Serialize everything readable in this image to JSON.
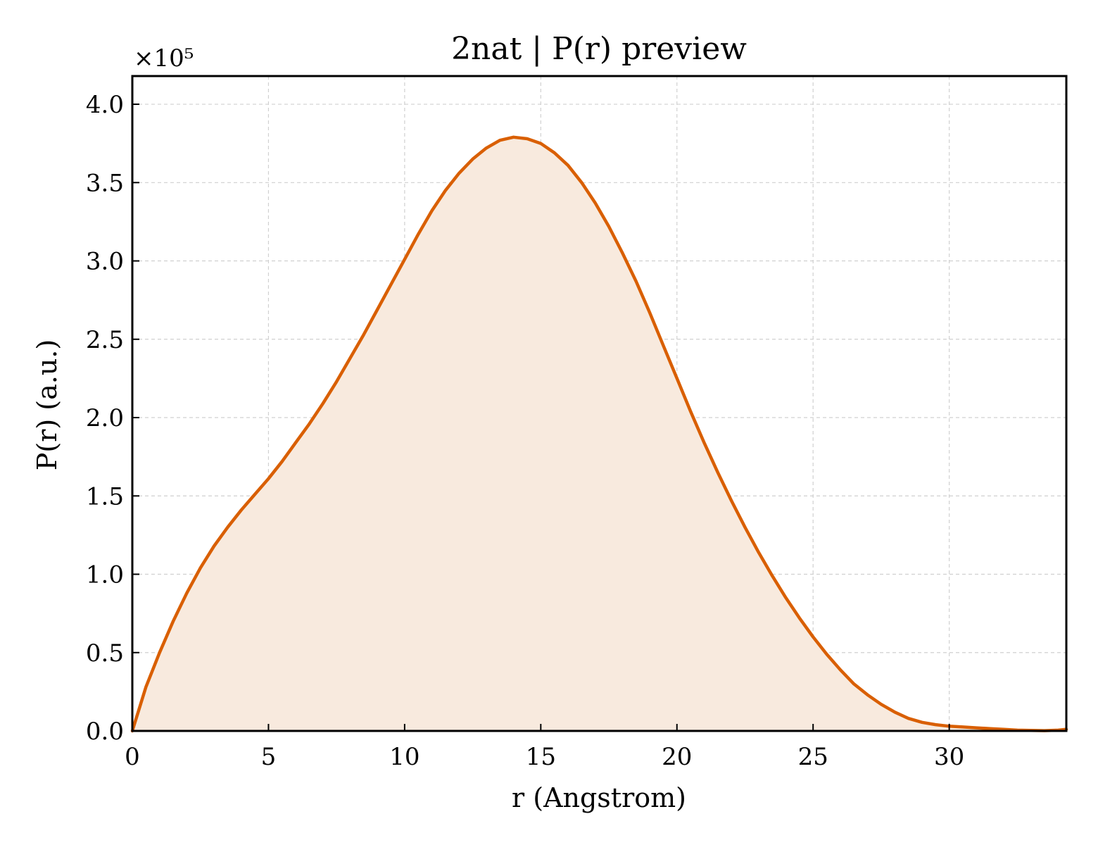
{
  "chart_data": {
    "type": "area",
    "title": "2nat | P(r) preview",
    "xlabel": "r (Angstrom)",
    "ylabel": "P(r) (a.u.)",
    "y_multiplier": "×10⁵",
    "xlim": [
      0,
      34.3
    ],
    "ylim": [
      0,
      4.18
    ],
    "xticks": [
      0,
      5,
      10,
      15,
      20,
      25,
      30
    ],
    "xtick_labels": [
      "0",
      "5",
      "10",
      "15",
      "20",
      "25",
      "30"
    ],
    "yticks": [
      0,
      0.5,
      1,
      1.5,
      2,
      2.5,
      3,
      3.5,
      4
    ],
    "ytick_labels": [
      "0.0",
      "0.5",
      "1.0",
      "1.5",
      "2.0",
      "2.5",
      "3.0",
      "3.5",
      "4.0"
    ],
    "grid": true,
    "line_color": "#d95f02",
    "fill_color": "#f8eade",
    "series": [
      {
        "x": [
          0,
          0.5,
          1,
          1.5,
          2,
          2.5,
          3,
          3.5,
          4,
          4.5,
          5,
          5.5,
          6,
          6.5,
          7,
          7.5,
          8,
          8.5,
          9,
          9.5,
          10,
          10.5,
          11,
          11.5,
          12,
          12.5,
          13,
          13.5,
          14,
          14.5,
          15,
          15.5,
          16,
          16.5,
          17,
          17.5,
          18,
          18.5,
          19,
          19.5,
          20,
          20.5,
          21,
          21.5,
          22,
          22.5,
          23,
          23.5,
          24,
          24.5,
          25,
          25.5,
          26,
          26.5,
          27,
          27.5,
          28,
          28.5,
          29,
          29.5,
          30,
          30.5,
          31,
          31.5,
          32,
          32.5,
          33,
          33.5,
          34,
          34.3
        ],
        "y": [
          0,
          0.28,
          0.5,
          0.7,
          0.88,
          1.04,
          1.18,
          1.3,
          1.41,
          1.51,
          1.61,
          1.72,
          1.84,
          1.96,
          2.09,
          2.23,
          2.38,
          2.53,
          2.69,
          2.85,
          3.01,
          3.17,
          3.32,
          3.45,
          3.56,
          3.65,
          3.72,
          3.77,
          3.79,
          3.78,
          3.75,
          3.69,
          3.61,
          3.5,
          3.37,
          3.22,
          3.05,
          2.87,
          2.67,
          2.46,
          2.25,
          2.04,
          1.84,
          1.65,
          1.47,
          1.3,
          1.14,
          0.99,
          0.85,
          0.72,
          0.6,
          0.49,
          0.39,
          0.3,
          0.23,
          0.17,
          0.12,
          0.08,
          0.055,
          0.04,
          0.03,
          0.025,
          0.02,
          0.015,
          0.01,
          0.005,
          0.003,
          0.002,
          0.005,
          0.01
        ]
      }
    ]
  }
}
